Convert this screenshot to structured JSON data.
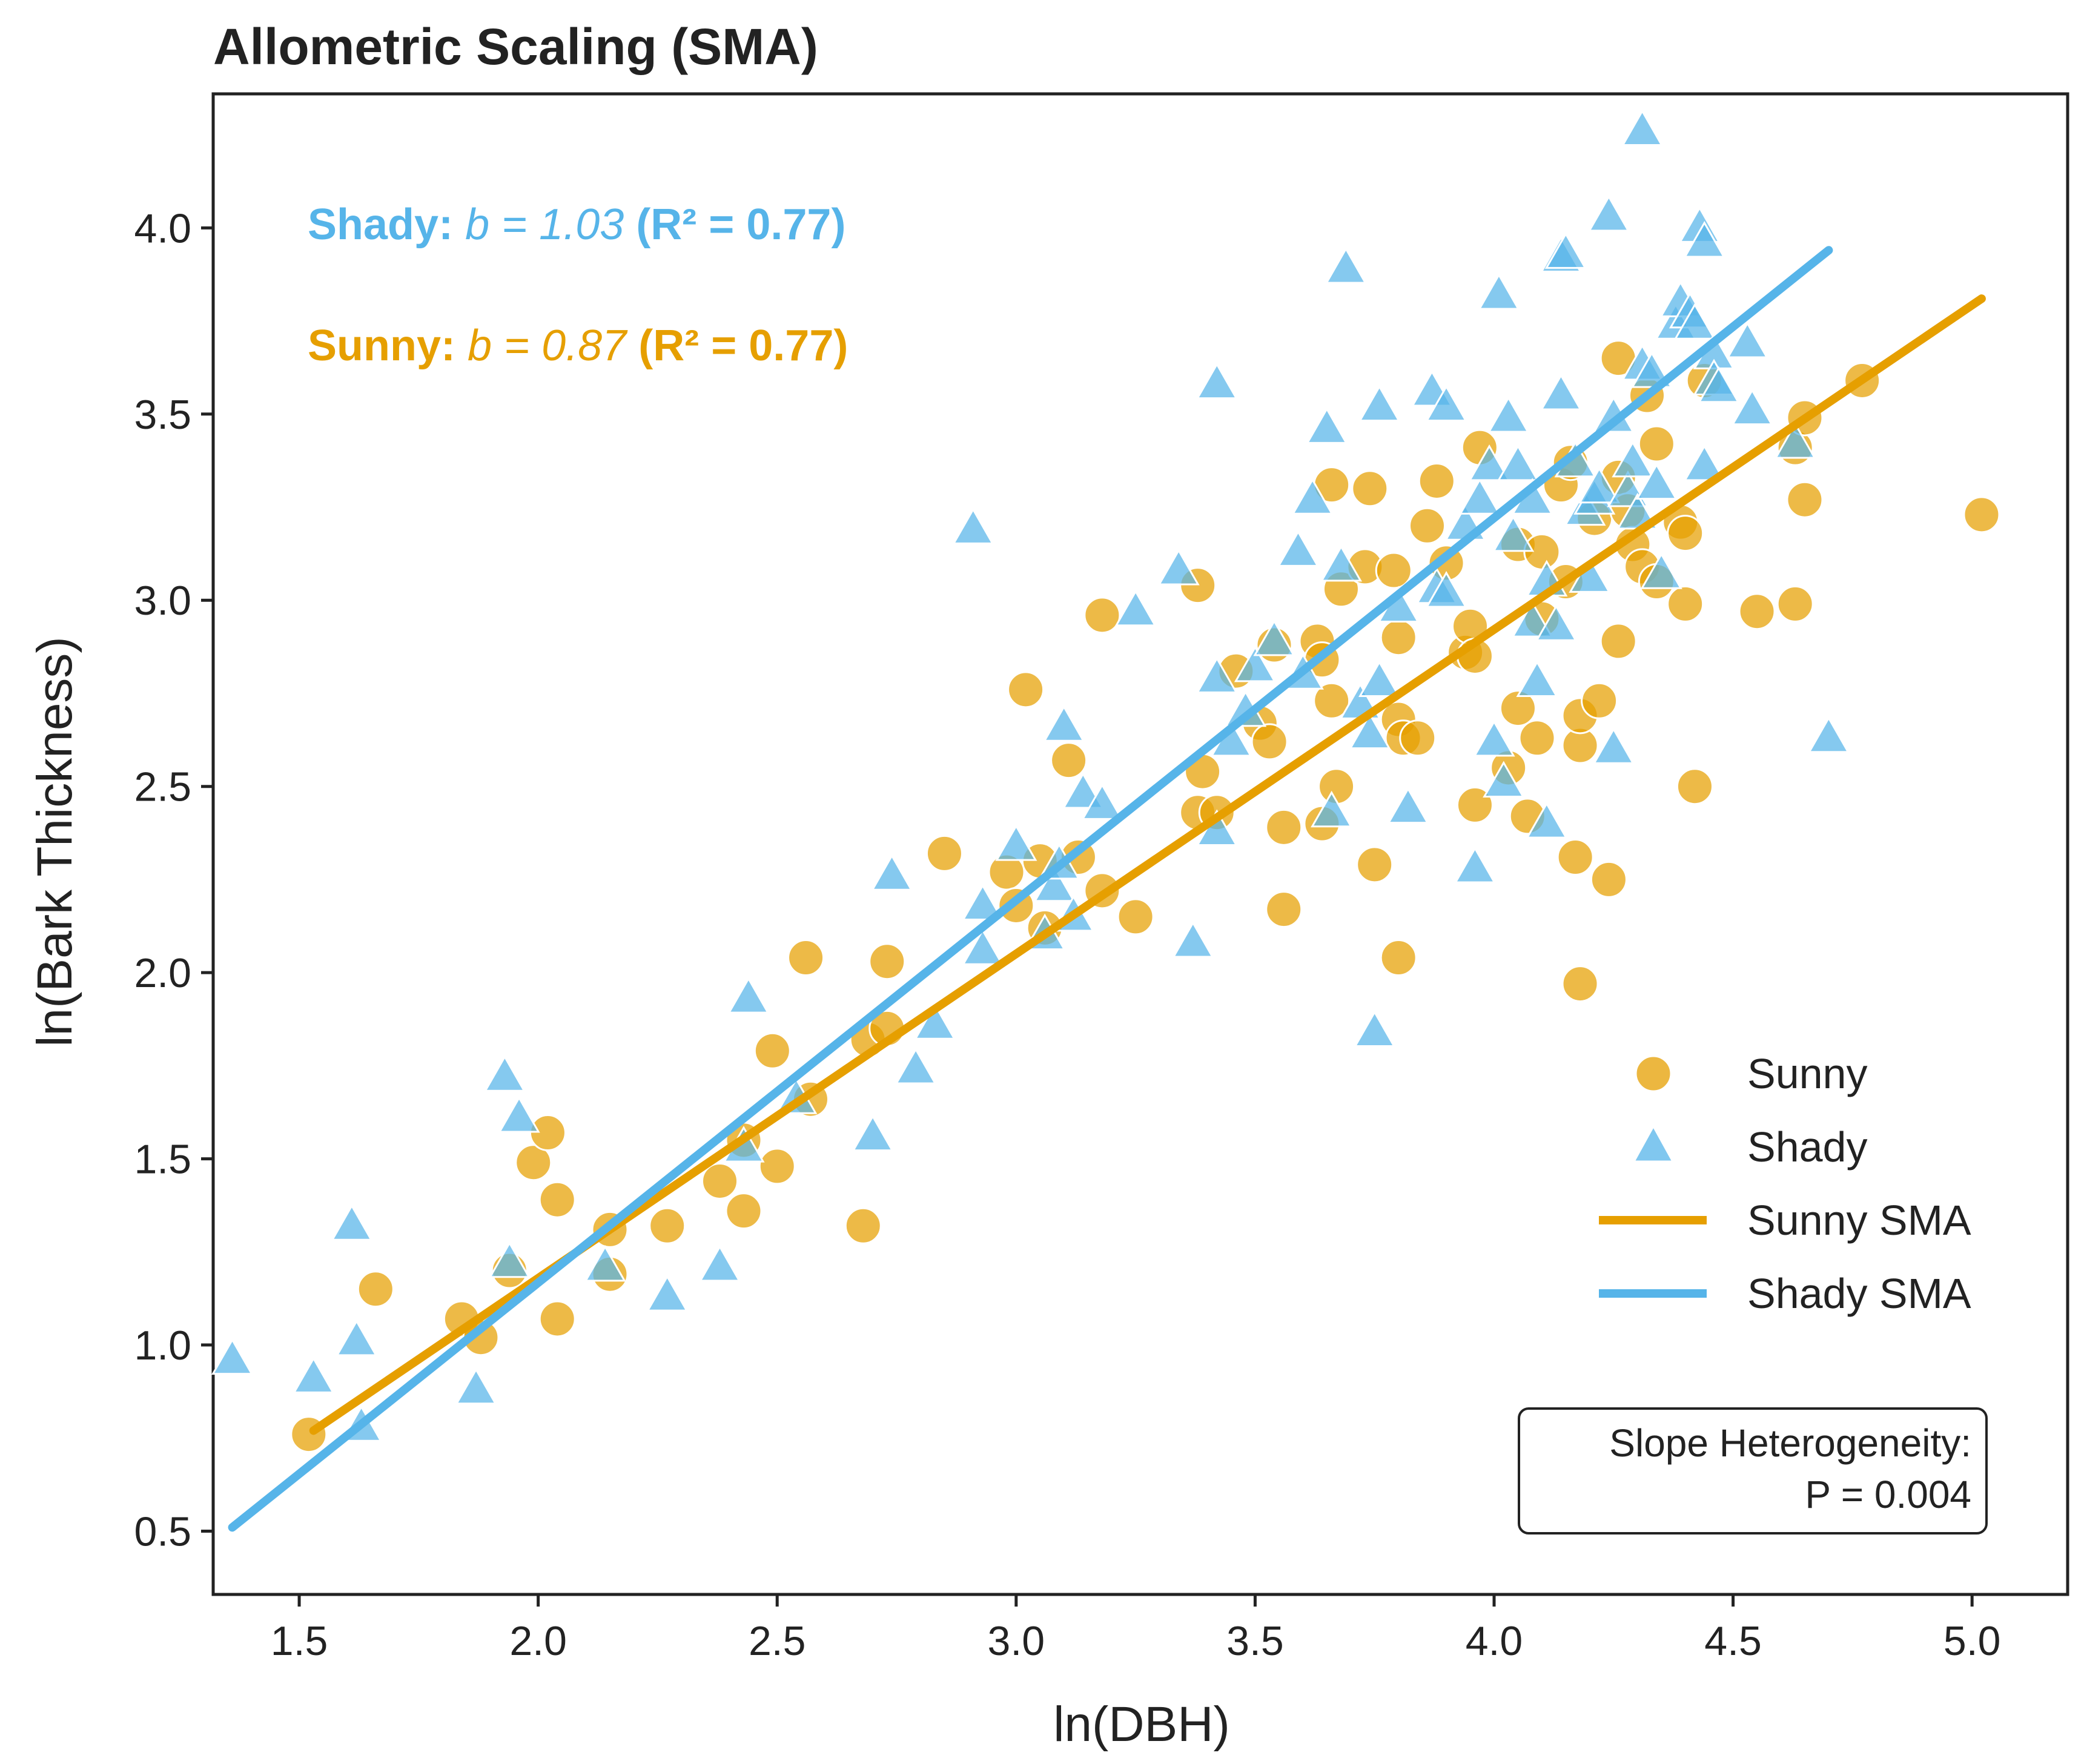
{
  "chart_data": {
    "type": "scatter",
    "title": "Allometric Scaling (SMA)",
    "xlabel": "ln(DBH)",
    "ylabel": "ln(Bark Thickness)",
    "xlim": [
      1.32,
      5.2
    ],
    "ylim": [
      0.33,
      4.36
    ],
    "xticks": [
      1.5,
      2.0,
      2.5,
      3.0,
      3.5,
      4.0,
      4.5,
      5.0
    ],
    "yticks": [
      0.5,
      1.0,
      1.5,
      2.0,
      2.5,
      3.0,
      3.5,
      4.0
    ],
    "xtick_labels": [
      "1.5",
      "2.0",
      "2.5",
      "3.0",
      "3.5",
      "4.0",
      "4.5",
      "5.0"
    ],
    "ytick_labels": [
      "0.5",
      "1.0",
      "1.5",
      "2.0",
      "2.5",
      "3.0",
      "3.5",
      "4.0"
    ],
    "grid": false,
    "legend_position": "lower-right",
    "legend": [
      "Sunny",
      "Shady",
      "Sunny SMA",
      "Shady SMA"
    ],
    "colors": {
      "sunny": "#E69F00",
      "shady": "#56B4E9",
      "text": "#222222"
    },
    "series": [
      {
        "name": "Sunny",
        "marker": "circle",
        "points": [
          [
            1.52,
            0.76
          ],
          [
            1.66,
            1.15
          ],
          [
            1.84,
            1.07
          ],
          [
            1.88,
            1.02
          ],
          [
            1.94,
            1.2
          ],
          [
            1.99,
            1.49
          ],
          [
            2.02,
            1.57
          ],
          [
            2.04,
            1.07
          ],
          [
            2.04,
            1.39
          ],
          [
            2.15,
            1.31
          ],
          [
            2.15,
            1.19
          ],
          [
            2.27,
            1.32
          ],
          [
            2.38,
            1.44
          ],
          [
            2.43,
            1.55
          ],
          [
            2.43,
            1.36
          ],
          [
            2.5,
            1.48
          ],
          [
            2.49,
            1.79
          ],
          [
            2.56,
            2.04
          ],
          [
            2.57,
            1.66
          ],
          [
            2.68,
            1.32
          ],
          [
            2.69,
            1.82
          ],
          [
            2.73,
            2.03
          ],
          [
            2.73,
            1.85
          ],
          [
            2.85,
            2.32
          ],
          [
            2.98,
            2.27
          ],
          [
            3.02,
            2.76
          ],
          [
            3.05,
            2.3
          ],
          [
            3.0,
            2.18
          ],
          [
            3.06,
            2.12
          ],
          [
            3.11,
            2.57
          ],
          [
            3.13,
            2.31
          ],
          [
            3.18,
            2.22
          ],
          [
            3.18,
            2.96
          ],
          [
            3.25,
            2.15
          ],
          [
            3.38,
            3.04
          ],
          [
            3.38,
            2.43
          ],
          [
            3.39,
            2.54
          ],
          [
            3.42,
            2.43
          ],
          [
            3.46,
            2.81
          ],
          [
            3.51,
            2.67
          ],
          [
            3.53,
            2.62
          ],
          [
            3.54,
            2.88
          ],
          [
            3.56,
            2.39
          ],
          [
            3.56,
            2.17
          ],
          [
            3.63,
            2.89
          ],
          [
            3.64,
            2.4
          ],
          [
            3.64,
            2.84
          ],
          [
            3.66,
            2.73
          ],
          [
            3.66,
            3.31
          ],
          [
            3.67,
            2.5
          ],
          [
            3.68,
            3.03
          ],
          [
            3.73,
            3.09
          ],
          [
            3.74,
            3.3
          ],
          [
            3.75,
            2.29
          ],
          [
            3.79,
            3.08
          ],
          [
            3.8,
            2.9
          ],
          [
            3.8,
            2.68
          ],
          [
            3.8,
            2.04
          ],
          [
            3.81,
            2.63
          ],
          [
            3.84,
            2.63
          ],
          [
            3.86,
            3.2
          ],
          [
            3.88,
            3.32
          ],
          [
            3.9,
            3.1
          ],
          [
            3.94,
            2.86
          ],
          [
            3.95,
            2.93
          ],
          [
            3.96,
            2.45
          ],
          [
            3.97,
            3.41
          ],
          [
            3.96,
            2.85
          ],
          [
            4.03,
            2.55
          ],
          [
            4.05,
            3.15
          ],
          [
            4.05,
            2.71
          ],
          [
            4.07,
            2.42
          ],
          [
            4.09,
            2.63
          ],
          [
            4.1,
            3.13
          ],
          [
            4.1,
            2.95
          ],
          [
            4.15,
            3.05
          ],
          [
            4.14,
            3.31
          ],
          [
            4.16,
            3.37
          ],
          [
            4.17,
            2.31
          ],
          [
            4.18,
            2.61
          ],
          [
            4.18,
            2.69
          ],
          [
            4.18,
            1.97
          ],
          [
            4.21,
            3.22
          ],
          [
            4.22,
            2.73
          ],
          [
            4.24,
            2.25
          ],
          [
            4.26,
            3.33
          ],
          [
            4.26,
            2.89
          ],
          [
            4.26,
            3.65
          ],
          [
            4.28,
            3.24
          ],
          [
            4.29,
            3.15
          ],
          [
            4.31,
            3.09
          ],
          [
            4.32,
            3.55
          ],
          [
            4.34,
            3.42
          ],
          [
            4.34,
            3.05
          ],
          [
            4.39,
            3.21
          ],
          [
            4.4,
            2.99
          ],
          [
            4.4,
            3.18
          ],
          [
            4.42,
            2.5
          ],
          [
            4.44,
            3.59
          ],
          [
            4.55,
            2.97
          ],
          [
            4.63,
            2.99
          ],
          [
            4.63,
            3.41
          ],
          [
            4.65,
            3.27
          ],
          [
            4.65,
            3.49
          ],
          [
            4.77,
            3.59
          ],
          [
            5.02,
            3.23
          ]
        ]
      },
      {
        "name": "Shady",
        "marker": "triangle",
        "points": [
          [
            1.36,
            0.96
          ],
          [
            1.53,
            0.91
          ],
          [
            1.61,
            1.32
          ],
          [
            1.62,
            1.01
          ],
          [
            1.63,
            0.78
          ],
          [
            1.87,
            0.88
          ],
          [
            1.93,
            1.72
          ],
          [
            1.94,
            1.22
          ],
          [
            1.96,
            1.61
          ],
          [
            2.14,
            1.21
          ],
          [
            2.27,
            1.13
          ],
          [
            2.38,
            1.21
          ],
          [
            2.43,
            1.53
          ],
          [
            2.44,
            1.93
          ],
          [
            2.54,
            1.66
          ],
          [
            2.7,
            1.56
          ],
          [
            2.74,
            2.26
          ],
          [
            2.79,
            1.74
          ],
          [
            2.83,
            1.86
          ],
          [
            2.91,
            3.19
          ],
          [
            2.93,
            2.06
          ],
          [
            2.93,
            2.18
          ],
          [
            3.0,
            2.34
          ],
          [
            3.06,
            2.1
          ],
          [
            3.08,
            2.23
          ],
          [
            3.09,
            2.29
          ],
          [
            3.1,
            2.66
          ],
          [
            3.12,
            2.15
          ],
          [
            3.14,
            2.48
          ],
          [
            3.18,
            2.45
          ],
          [
            3.25,
            2.97
          ],
          [
            3.34,
            3.08
          ],
          [
            3.37,
            2.08
          ],
          [
            3.42,
            2.38
          ],
          [
            3.42,
            3.58
          ],
          [
            3.42,
            2.79
          ],
          [
            3.45,
            2.62
          ],
          [
            3.48,
            2.7
          ],
          [
            3.5,
            2.82
          ],
          [
            3.54,
            2.89
          ],
          [
            3.59,
            3.13
          ],
          [
            3.6,
            2.8
          ],
          [
            3.62,
            3.27
          ],
          [
            3.65,
            3.46
          ],
          [
            3.66,
            2.43
          ],
          [
            3.68,
            3.09
          ],
          [
            3.69,
            3.89
          ],
          [
            3.72,
            2.72
          ],
          [
            3.74,
            2.64
          ],
          [
            3.75,
            1.84
          ],
          [
            3.76,
            3.52
          ],
          [
            3.76,
            2.78
          ],
          [
            3.8,
            2.98
          ],
          [
            3.82,
            2.44
          ],
          [
            3.87,
            3.56
          ],
          [
            3.88,
            3.03
          ],
          [
            3.9,
            3.52
          ],
          [
            3.9,
            3.02
          ],
          [
            3.94,
            3.2
          ],
          [
            3.96,
            2.28
          ],
          [
            3.97,
            3.27
          ],
          [
            3.99,
            3.36
          ],
          [
            4.0,
            2.62
          ],
          [
            4.01,
            3.82
          ],
          [
            4.02,
            2.51
          ],
          [
            4.03,
            3.49
          ],
          [
            4.04,
            3.17
          ],
          [
            4.05,
            3.36
          ],
          [
            4.08,
            2.94
          ],
          [
            4.08,
            3.27
          ],
          [
            4.09,
            2.78
          ],
          [
            4.11,
            2.4
          ],
          [
            4.11,
            3.05
          ],
          [
            4.13,
            2.93
          ],
          [
            4.14,
            3.55
          ],
          [
            4.14,
            3.92
          ],
          [
            4.15,
            3.93
          ],
          [
            4.17,
            3.37
          ],
          [
            4.19,
            3.24
          ],
          [
            4.2,
            3.06
          ],
          [
            4.21,
            3.27
          ],
          [
            4.22,
            3.3
          ],
          [
            4.24,
            4.03
          ],
          [
            4.25,
            2.6
          ],
          [
            4.25,
            3.49
          ],
          [
            4.28,
            3.29
          ],
          [
            4.29,
            3.37
          ],
          [
            4.3,
            3.23
          ],
          [
            4.31,
            4.26
          ],
          [
            4.31,
            3.63
          ],
          [
            4.33,
            3.61
          ],
          [
            4.34,
            3.31
          ],
          [
            4.35,
            3.07
          ],
          [
            4.38,
            3.74
          ],
          [
            4.39,
            3.8
          ],
          [
            4.41,
            3.77
          ],
          [
            4.42,
            3.74
          ],
          [
            4.43,
            4.0
          ],
          [
            4.44,
            3.96
          ],
          [
            4.44,
            3.36
          ],
          [
            4.46,
            3.66
          ],
          [
            4.46,
            3.59
          ],
          [
            4.47,
            3.57
          ],
          [
            4.53,
            3.69
          ],
          [
            4.54,
            3.51
          ],
          [
            4.63,
            3.42
          ],
          [
            4.7,
            2.63
          ]
        ]
      },
      {
        "name": "Sunny SMA",
        "type": "line",
        "x": [
          1.53,
          5.02
        ],
        "y": [
          0.77,
          3.81
        ],
        "slope_b": 0.87,
        "r2": 0.77
      },
      {
        "name": "Shady SMA",
        "type": "line",
        "x": [
          1.36,
          4.7
        ],
        "y": [
          0.51,
          3.94
        ],
        "slope_b": 1.03,
        "r2": 0.77
      }
    ],
    "annotations": [
      {
        "series": "Shady",
        "label": "Shady:",
        "b_text": "b = 1.03",
        "r2_text": "(R² = 0.77)"
      },
      {
        "series": "Sunny",
        "label": "Sunny:",
        "b_text": "b = 0.87",
        "r2_text": "(R² = 0.77)"
      }
    ],
    "stat_box": {
      "line1": "Slope Heterogeneity:",
      "line2": "P = 0.004"
    }
  }
}
